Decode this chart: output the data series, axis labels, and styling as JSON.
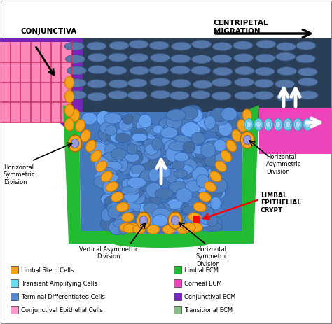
{
  "legend_items_left": [
    {
      "label": "Limbal Stem Cells",
      "color": "#F5A31A"
    },
    {
      "label": "Transient Amplifying Cells",
      "color": "#66DDEE"
    },
    {
      "label": "Terminal Differentiated Cells",
      "color": "#5588CC"
    },
    {
      "label": "Conjunctival Epithelial Cells",
      "color": "#FF99CC"
    }
  ],
  "legend_items_right": [
    {
      "label": "Limbal ECM",
      "color": "#22BB33"
    },
    {
      "label": "Corneal ECM",
      "color": "#EE44BB"
    },
    {
      "label": "Conjunctival ECM",
      "color": "#7722BB"
    },
    {
      "label": "Transitional ECM",
      "color": "#88BB88"
    }
  ],
  "labels": {
    "conjunctiva": "CONJUNCTIVA",
    "centripetal": "CENTRIPETAL\nMIGRATION",
    "horiz_sym_left": "Horizontal\nSymmetric\nDivision",
    "horiz_asym_right": "Horizontal\nAsymmetric\nDivision",
    "vert_asym": "Vertical Asymmetric\nDivision",
    "horiz_sym_bottom": "Horizontal\nSymmetric\nDivision",
    "limbal_crypt": "LIMBAL\nEPITHELIAL\nCRYPT"
  },
  "colors": {
    "background": "#FFFFFF",
    "blue_cells": "#5588CC",
    "blue_cells_light": "#6699DD",
    "blue_cells_dark": "#3A5A80",
    "cornea_bg": "#3A5580",
    "cornea_cell": "#5577AA",
    "limbal_stem": "#F5A31A",
    "limbal_ecm": "#22BB33",
    "corneal_ecm": "#EE44BB",
    "conjunctival_ecm": "#7722BB",
    "conjunctival_cells": "#FF88BB",
    "transient_amp": "#66DDEE",
    "white": "#FFFFFF",
    "black": "#000000",
    "red": "#FF0000"
  }
}
